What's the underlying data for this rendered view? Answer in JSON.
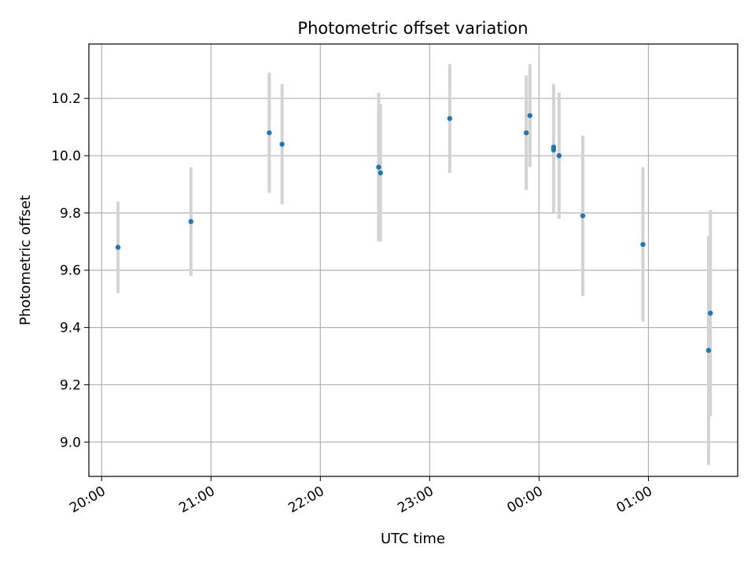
{
  "chart_data": {
    "type": "scatter",
    "title": "Photometric offset variation",
    "xlabel": "UTC time",
    "ylabel": "Photometric offset",
    "x_axis": {
      "kind": "time",
      "start": "20:00",
      "range": [
        "19:53",
        "01:49"
      ],
      "ticks": [
        "20:00",
        "21:00",
        "22:00",
        "23:00",
        "00:00",
        "01:00"
      ]
    },
    "y_axis": {
      "range": [
        8.88,
        10.39
      ],
      "ticks": [
        "9.0",
        "9.2",
        "9.4",
        "9.6",
        "9.8",
        "10.0",
        "10.2"
      ]
    },
    "grid": true,
    "colors": {
      "point": "#1f77b4",
      "errorbar": "#d3d3d3"
    },
    "points": [
      {
        "t": "20:09",
        "y": 9.68,
        "err": 0.16
      },
      {
        "t": "20:49",
        "y": 9.77,
        "err": 0.19
      },
      {
        "t": "21:32",
        "y": 10.08,
        "err": 0.21
      },
      {
        "t": "21:39",
        "y": 10.04,
        "err": 0.21
      },
      {
        "t": "22:32",
        "y": 9.96,
        "err": 0.26
      },
      {
        "t": "22:33",
        "y": 9.94,
        "err": 0.24
      },
      {
        "t": "23:11",
        "y": 10.13,
        "err": 0.19
      },
      {
        "t": "23:53",
        "y": 10.08,
        "err": 0.2
      },
      {
        "t": "23:55",
        "y": 10.14,
        "err": 0.18
      },
      {
        "t": "00:08",
        "y": 10.03,
        "err": 0.22
      },
      {
        "t": "00:08",
        "y": 10.02,
        "err": 0.22
      },
      {
        "t": "00:11",
        "y": 10.0,
        "err": 0.22
      },
      {
        "t": "00:24",
        "y": 9.79,
        "err": 0.28
      },
      {
        "t": "00:57",
        "y": 9.69,
        "err": 0.27
      },
      {
        "t": "01:33",
        "y": 9.32,
        "err": 0.4
      },
      {
        "t": "01:34",
        "y": 9.45,
        "err": 0.36
      }
    ]
  }
}
